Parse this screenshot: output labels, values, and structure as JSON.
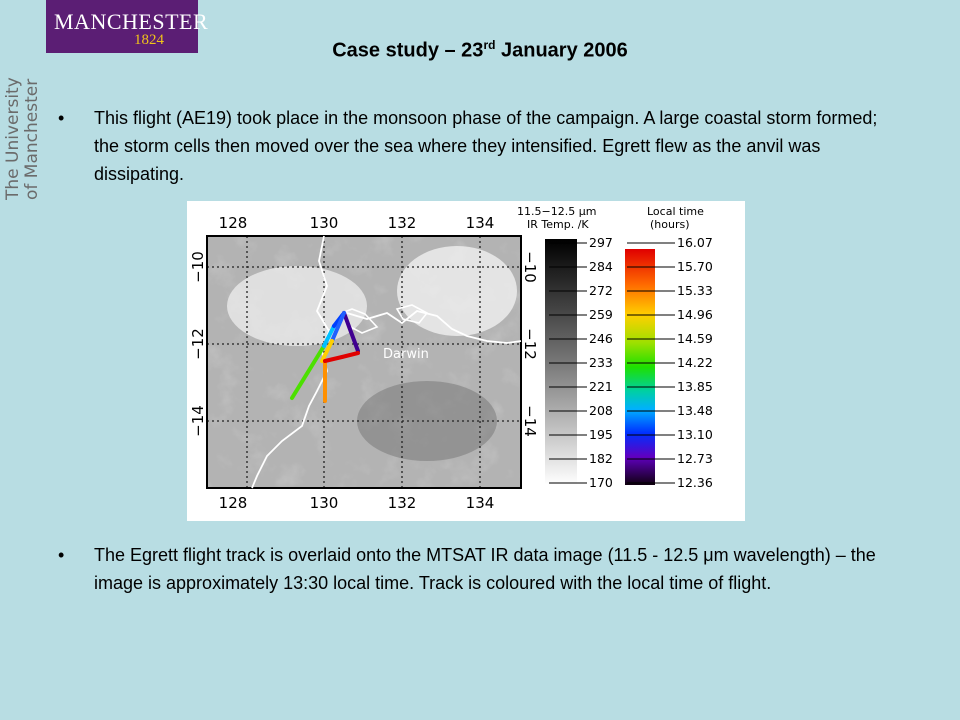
{
  "logo": {
    "name": "MANCHESTER",
    "year": "1824"
  },
  "side_label": {
    "line1": "The University",
    "line2": "of Manchester"
  },
  "slide": {
    "title_main": "Case study – 23",
    "title_sup": "rd",
    "title_rest": " January 2006",
    "bullets": [
      "This flight (AE19) took place in the monsoon phase of the campaign. A large coastal storm formed; the storm cells then moved over the sea where they intensified. Egrett flew as the anvil was dissipating.",
      "The Egrett flight track is overlaid onto the MTSAT IR data image (11.5 - 12.5 μm wavelength) – the image is approximately 13:30 local time. Track is coloured with the local time of flight."
    ],
    "bullet_glyph": "•"
  },
  "figure": {
    "lon_ticks": [
      "128",
      "130",
      "132",
      "134"
    ],
    "lat_ticks": [
      "−10",
      "−12",
      "−14"
    ],
    "place_label": "Darwin",
    "ir_header": [
      "11.5−12.5 μm",
      "IR Temp. /K"
    ],
    "ir_scale": [
      "297",
      "284",
      "272",
      "259",
      "246",
      "233",
      "221",
      "208",
      "195",
      "182",
      "170"
    ],
    "time_header": [
      "Local time",
      "(hours)"
    ],
    "time_scale": [
      "16.07",
      "15.70",
      "15.33",
      "14.96",
      "14.59",
      "14.22",
      "13.85",
      "13.48",
      "13.10",
      "12.73",
      "12.36"
    ]
  }
}
